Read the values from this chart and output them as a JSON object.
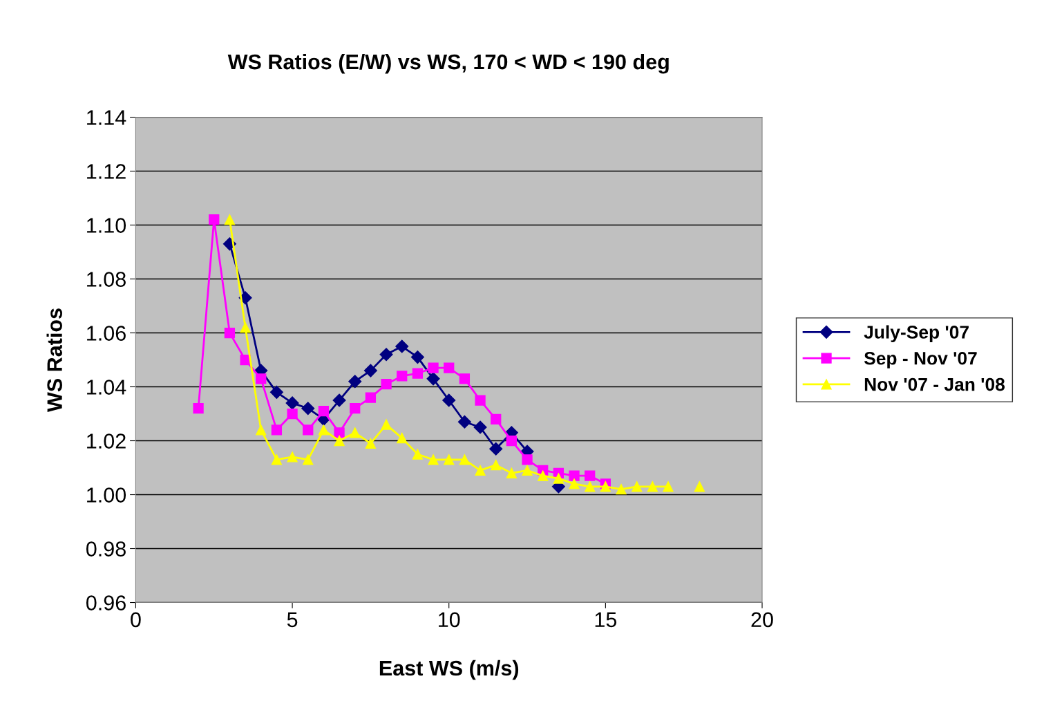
{
  "chart_data": {
    "type": "line",
    "title": "WS Ratios (E/W) vs WS, 170 < WD < 190 deg",
    "xlabel": "East WS (m/s)",
    "ylabel": "WS Ratios",
    "xlim": [
      0,
      20
    ],
    "xticks": [
      0,
      5,
      10,
      15,
      20
    ],
    "ylim": [
      0.96,
      1.14
    ],
    "yticks": [
      {
        "value": 0.96,
        "label": "0.96"
      },
      {
        "value": 0.98,
        "label": "0.98"
      },
      {
        "value": 1.0,
        "label": "1.00"
      },
      {
        "value": 1.02,
        "label": "1.02"
      },
      {
        "value": 1.04,
        "label": "1.04"
      },
      {
        "value": 1.06,
        "label": "1.06"
      },
      {
        "value": 1.08,
        "label": "1.08"
      },
      {
        "value": 1.1,
        "label": "1.10"
      },
      {
        "value": 1.12,
        "label": "1.12"
      },
      {
        "value": 1.14,
        "label": "1.14"
      }
    ],
    "grid": "y",
    "legend": "right",
    "series": [
      {
        "name": "July-Sep '07",
        "color": "#000080",
        "marker": "diamond",
        "x": [
          3,
          3.5,
          4,
          4.5,
          5,
          5.5,
          6,
          6.5,
          7,
          7.5,
          8,
          8.5,
          9,
          9.5,
          10,
          10.5,
          11,
          11.5,
          12,
          12.5,
          13,
          13.5
        ],
        "values": [
          1.093,
          1.073,
          1.046,
          1.038,
          1.034,
          1.032,
          1.028,
          1.035,
          1.042,
          1.046,
          1.052,
          1.055,
          1.051,
          1.043,
          1.035,
          1.027,
          1.025,
          1.017,
          1.023,
          1.016,
          null,
          1.003
        ]
      },
      {
        "name": "Sep - Nov '07",
        "color": "#ff00ff",
        "marker": "square",
        "x": [
          2,
          2.5,
          3,
          3.5,
          4,
          4.5,
          5,
          5.5,
          6,
          6.5,
          7,
          7.5,
          8,
          8.5,
          9,
          9.5,
          10,
          10.5,
          11,
          11.5,
          12,
          12.5,
          13,
          13.5,
          14,
          14.5,
          15
        ],
        "values": [
          1.032,
          1.102,
          1.06,
          1.05,
          1.043,
          1.024,
          1.03,
          1.024,
          1.031,
          1.023,
          1.032,
          1.036,
          1.041,
          1.044,
          1.045,
          1.047,
          1.047,
          1.043,
          1.035,
          1.028,
          1.02,
          1.013,
          1.009,
          1.008,
          1.007,
          1.007,
          1.004
        ]
      },
      {
        "name": "Nov '07 - Jan '08",
        "color": "#ffff00",
        "marker": "triangle",
        "x": [
          3,
          3.5,
          4,
          4.5,
          5,
          5.5,
          6,
          6.5,
          7,
          7.5,
          8,
          8.5,
          9,
          9.5,
          10,
          10.5,
          11,
          11.5,
          12,
          12.5,
          13,
          13.5,
          14,
          14.5,
          15,
          15.5,
          16,
          16.5,
          17,
          17.5,
          18
        ],
        "values": [
          1.102,
          1.062,
          1.024,
          1.013,
          1.014,
          1.013,
          1.024,
          1.02,
          1.023,
          1.019,
          1.026,
          1.021,
          1.015,
          1.013,
          1.013,
          1.013,
          1.009,
          1.011,
          1.008,
          1.009,
          1.007,
          1.006,
          1.004,
          1.003,
          1.003,
          1.002,
          1.003,
          1.003,
          1.003,
          null,
          1.003
        ]
      }
    ]
  }
}
